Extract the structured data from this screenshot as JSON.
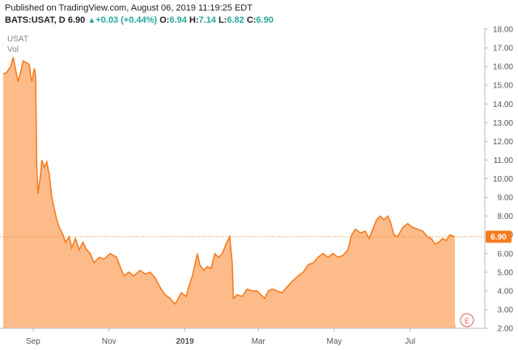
{
  "header": {
    "published": "Published on TradingView.com, August 06, 2019 11:19:25 EDT",
    "symbol": "BATS:USAT, D",
    "price": "6.90",
    "change_arrow": "▲",
    "change": "+0.03 (+0.44%)",
    "o_label": "O:",
    "o_value": "6.94",
    "h_label": "H:",
    "h_value": "7.14",
    "l_label": "L:",
    "l_value": "6.82",
    "c_label": "C:",
    "c_value": "6.90"
  },
  "legend": {
    "symbol": "USAT",
    "volume": "Vol"
  },
  "last_price_label": "6.90",
  "event_badge": "E",
  "colors": {
    "line": "#f57c1f",
    "area": "#fdbb8a",
    "volume": "#d6c7a0",
    "axis": "#555555",
    "badge": "#e05a5a"
  },
  "chart_data": {
    "type": "area",
    "ylim": [
      2.0,
      18.0
    ],
    "y_ticks": [
      "2.00",
      "3.00",
      "4.00",
      "5.00",
      "6.00",
      "7.00",
      "8.00",
      "9.00",
      "10.00",
      "11.00",
      "12.00",
      "13.00",
      "14.00",
      "15.00",
      "16.00",
      "17.00",
      "18.00"
    ],
    "x_ticks": [
      {
        "label": "Sep",
        "date": "2018-09-01"
      },
      {
        "label": "Nov",
        "date": "2018-11-01"
      },
      {
        "label": "2019",
        "date": "2019-01-01"
      },
      {
        "label": "Mar",
        "date": "2019-03-01"
      },
      {
        "label": "May",
        "date": "2019-05-01"
      },
      {
        "label": "Jul",
        "date": "2019-07-01"
      }
    ],
    "x_range": [
      "2018-08-08",
      "2019-08-30"
    ],
    "last_price": 6.9,
    "series": [
      {
        "values": [
          [
            "2018-08-08",
            15.6
          ],
          [
            "2018-08-11",
            15.7
          ],
          [
            "2018-08-14",
            16.0
          ],
          [
            "2018-08-16",
            16.5
          ],
          [
            "2018-08-18",
            15.8
          ],
          [
            "2018-08-20",
            15.2
          ],
          [
            "2018-08-22",
            15.7
          ],
          [
            "2018-08-24",
            16.3
          ],
          [
            "2018-08-27",
            16.2
          ],
          [
            "2018-08-29",
            16.1
          ],
          [
            "2018-08-30",
            15.5
          ],
          [
            "2018-08-31",
            15.2
          ],
          [
            "2018-09-02",
            15.9
          ],
          [
            "2018-09-03",
            15.5
          ],
          [
            "2018-09-04",
            10.5
          ],
          [
            "2018-09-05",
            9.2
          ],
          [
            "2018-09-07",
            10.2
          ],
          [
            "2018-09-08",
            11.0
          ],
          [
            "2018-09-10",
            10.6
          ],
          [
            "2018-09-12",
            10.9
          ],
          [
            "2018-09-14",
            10.2
          ],
          [
            "2018-09-16",
            9.0
          ],
          [
            "2018-09-18",
            8.4
          ],
          [
            "2018-09-20",
            7.8
          ],
          [
            "2018-09-22",
            7.4
          ],
          [
            "2018-09-25",
            7.0
          ],
          [
            "2018-09-27",
            6.6
          ],
          [
            "2018-09-30",
            6.9
          ],
          [
            "2018-10-02",
            6.3
          ],
          [
            "2018-10-05",
            6.8
          ],
          [
            "2018-10-08",
            6.2
          ],
          [
            "2018-10-11",
            6.6
          ],
          [
            "2018-10-14",
            6.2
          ],
          [
            "2018-10-17",
            6.0
          ],
          [
            "2018-10-20",
            5.5
          ],
          [
            "2018-10-24",
            5.8
          ],
          [
            "2018-10-28",
            5.7
          ],
          [
            "2018-11-02",
            6.0
          ],
          [
            "2018-11-07",
            5.8
          ],
          [
            "2018-11-10",
            5.3
          ],
          [
            "2018-11-13",
            4.8
          ],
          [
            "2018-11-17",
            5.0
          ],
          [
            "2018-11-21",
            4.8
          ],
          [
            "2018-11-26",
            5.1
          ],
          [
            "2018-11-30",
            4.9
          ],
          [
            "2018-12-04",
            5.0
          ],
          [
            "2018-12-08",
            4.7
          ],
          [
            "2018-12-12",
            4.2
          ],
          [
            "2018-12-16",
            3.8
          ],
          [
            "2018-12-20",
            3.6
          ],
          [
            "2018-12-24",
            3.3
          ],
          [
            "2018-12-26",
            3.5
          ],
          [
            "2018-12-29",
            3.9
          ],
          [
            "2019-01-02",
            3.7
          ],
          [
            "2019-01-04",
            4.2
          ],
          [
            "2019-01-07",
            4.8
          ],
          [
            "2019-01-09",
            5.4
          ],
          [
            "2019-01-11",
            6.0
          ],
          [
            "2019-01-13",
            5.4
          ],
          [
            "2019-01-16",
            5.1
          ],
          [
            "2019-01-19",
            5.3
          ],
          [
            "2019-01-22",
            5.2
          ],
          [
            "2019-01-25",
            6.0
          ],
          [
            "2019-01-28",
            5.8
          ],
          [
            "2019-01-31",
            6.0
          ],
          [
            "2019-02-03",
            6.5
          ],
          [
            "2019-02-06",
            6.9
          ],
          [
            "2019-02-08",
            5.5
          ],
          [
            "2019-02-09",
            3.6
          ],
          [
            "2019-02-12",
            3.8
          ],
          [
            "2019-02-16",
            3.7
          ],
          [
            "2019-02-20",
            4.1
          ],
          [
            "2019-02-24",
            4.0
          ],
          [
            "2019-02-28",
            4.0
          ],
          [
            "2019-03-03",
            3.8
          ],
          [
            "2019-03-06",
            3.6
          ],
          [
            "2019-03-09",
            4.0
          ],
          [
            "2019-03-12",
            4.1
          ],
          [
            "2019-03-16",
            4.0
          ],
          [
            "2019-03-20",
            3.9
          ],
          [
            "2019-03-24",
            4.2
          ],
          [
            "2019-03-28",
            4.5
          ],
          [
            "2019-04-02",
            4.8
          ],
          [
            "2019-04-06",
            5.0
          ],
          [
            "2019-04-10",
            5.4
          ],
          [
            "2019-04-14",
            5.5
          ],
          [
            "2019-04-18",
            5.8
          ],
          [
            "2019-04-22",
            6.0
          ],
          [
            "2019-04-26",
            5.8
          ],
          [
            "2019-04-30",
            6.0
          ],
          [
            "2019-05-04",
            5.8
          ],
          [
            "2019-05-08",
            5.9
          ],
          [
            "2019-05-12",
            6.2
          ],
          [
            "2019-05-15",
            7.0
          ],
          [
            "2019-05-18",
            7.3
          ],
          [
            "2019-05-22",
            7.1
          ],
          [
            "2019-05-26",
            7.2
          ],
          [
            "2019-05-29",
            6.8
          ],
          [
            "2019-06-01",
            7.3
          ],
          [
            "2019-06-04",
            7.8
          ],
          [
            "2019-06-07",
            8.0
          ],
          [
            "2019-06-10",
            7.8
          ],
          [
            "2019-06-13",
            8.0
          ],
          [
            "2019-06-15",
            7.7
          ],
          [
            "2019-06-18",
            7.0
          ],
          [
            "2019-06-21",
            6.9
          ],
          [
            "2019-06-25",
            7.4
          ],
          [
            "2019-06-29",
            7.6
          ],
          [
            "2019-07-03",
            7.4
          ],
          [
            "2019-07-07",
            7.3
          ],
          [
            "2019-07-11",
            7.2
          ],
          [
            "2019-07-15",
            6.9
          ],
          [
            "2019-07-18",
            6.8
          ],
          [
            "2019-07-21",
            6.5
          ],
          [
            "2019-07-24",
            6.6
          ],
          [
            "2019-07-27",
            6.8
          ],
          [
            "2019-07-30",
            6.7
          ],
          [
            "2019-08-02",
            7.0
          ],
          [
            "2019-08-06",
            6.9
          ]
        ]
      }
    ]
  }
}
